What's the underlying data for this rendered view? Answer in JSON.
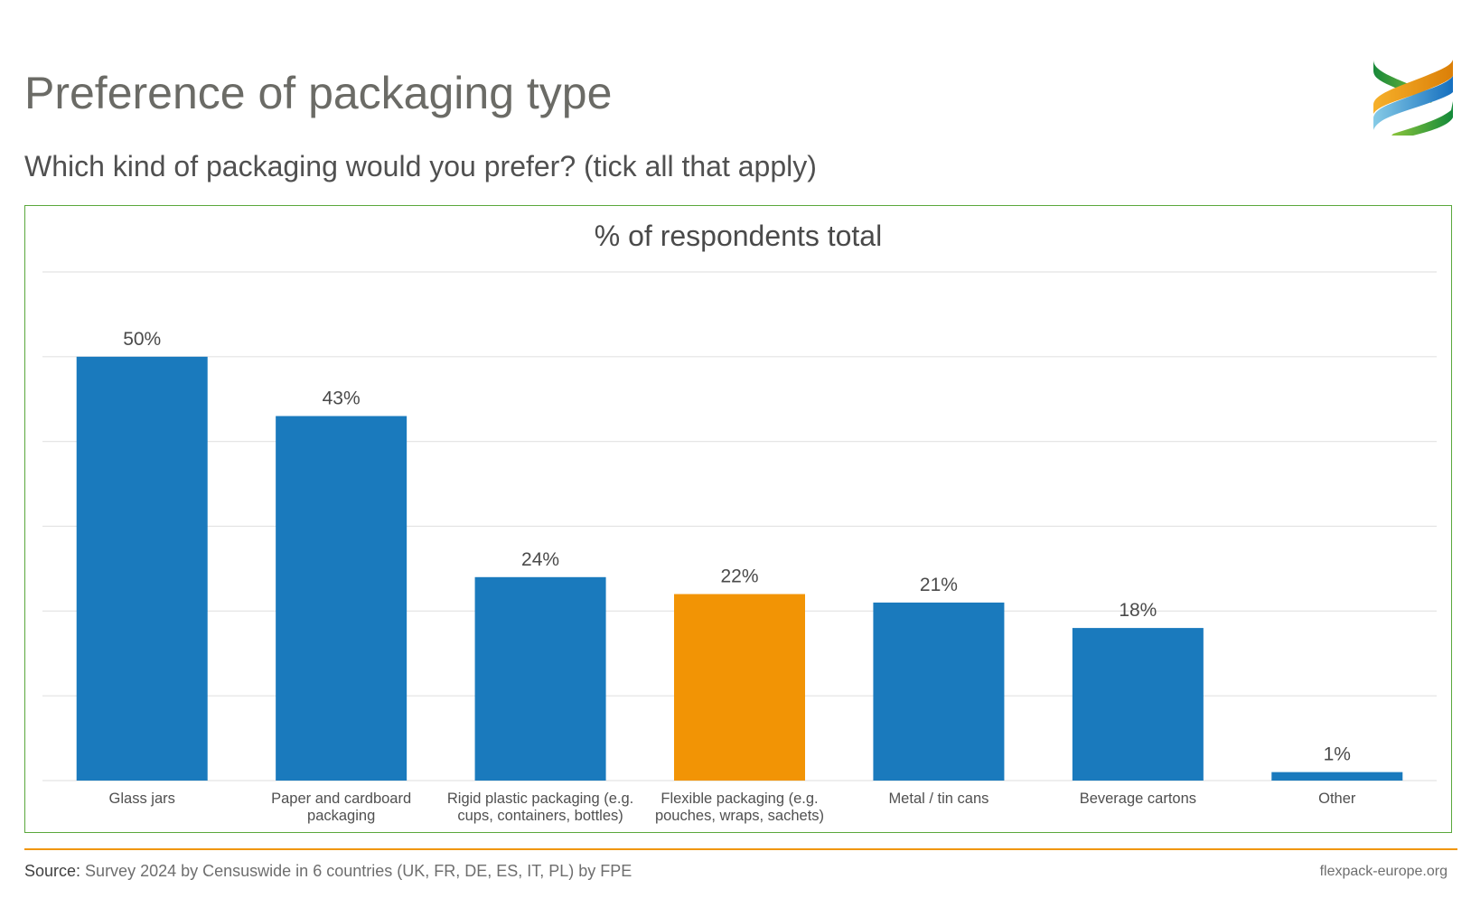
{
  "header": {
    "title": "Preference of packaging type",
    "subtitle": "Which kind of packaging would you prefer? (tick all that apply)"
  },
  "logo": {
    "name": "flexpack-europe-logo",
    "colors": [
      "#1a8f3c",
      "#f0a020",
      "#1c7cc4",
      "#7cc6e4",
      "#8cc43c"
    ]
  },
  "footer": {
    "source_label": "Source:",
    "source_text": " Survey 2024 by Censuswide in 6 countries (UK, FR, DE, ES, IT, PL) by FPE",
    "site": "flexpack-europe.org"
  },
  "colors": {
    "bar_default": "#1a7abd",
    "bar_highlight": "#f29405",
    "frame": "#5aa83c",
    "rule": "#f0960c",
    "grid": "#e3e3e3"
  },
  "chart_data": {
    "type": "bar",
    "title": "% of respondents total",
    "xlabel": "",
    "ylabel": "",
    "ylim": [
      0,
      60
    ],
    "grid": true,
    "gridline_step": 10,
    "y_axis_labels_visible": false,
    "legend": "none",
    "categories": [
      [
        "Glass jars"
      ],
      [
        "Paper and cardboard",
        "packaging"
      ],
      [
        "Rigid plastic packaging (e.g.",
        "cups, containers, bottles)"
      ],
      [
        "Flexible packaging (e.g.",
        "pouches, wraps, sachets)"
      ],
      [
        "Metal / tin cans"
      ],
      [
        "Beverage cartons"
      ],
      [
        "Other"
      ]
    ],
    "values": [
      50,
      43,
      24,
      22,
      21,
      18,
      1
    ],
    "data_labels": [
      "50%",
      "43%",
      "24%",
      "22%",
      "21%",
      "18%",
      "1%"
    ],
    "highlight_index": 3
  }
}
